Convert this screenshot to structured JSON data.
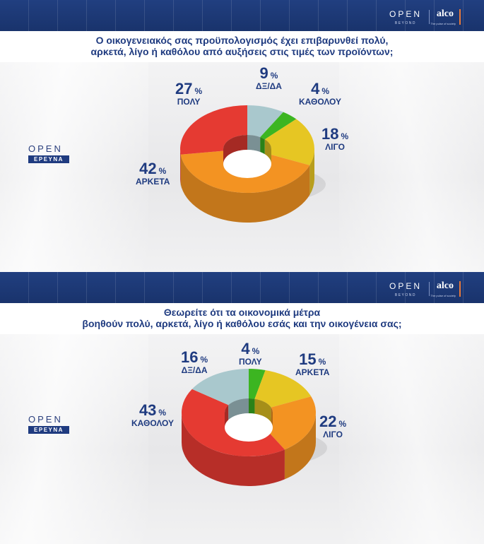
{
  "brand": {
    "open": "OPEN",
    "beyond": "BEYOND",
    "alco": "alco",
    "alco_tag": "The pulse of society"
  },
  "logo": {
    "word": "OPEN",
    "tag": "ΕΡΕΥΝΑ"
  },
  "colors": {
    "header": "#1d3a78",
    "text": "#1f3b80",
    "red": "#e53a32",
    "orange": "#f39322",
    "yellow": "#e6c623",
    "green": "#3cb521",
    "grey": "#a9c8cd"
  },
  "chart_data": [
    {
      "type": "pie",
      "title_line1": "Ο οικογενειακός σας προϋπολογισμός έχει επιβαρυνθεί πολύ,",
      "title_line2": "αρκετά, λίγο ή καθόλου από αυξήσεις στις τιμές των προϊόντων;",
      "pct_symbol": "%",
      "slices": [
        {
          "label": "ΔΞ/ΔΑ",
          "value": 9,
          "color": "#a9c8cd"
        },
        {
          "label": "ΚΑΘΟΛΟΥ",
          "value": 4,
          "color": "#3cb521"
        },
        {
          "label": "ΛΙΓΟ",
          "value": 18,
          "color": "#e6c623"
        },
        {
          "label": "ΑΡΚΕΤΑ",
          "value": 42,
          "color": "#f39322"
        },
        {
          "label": "ΠΟΛΥ",
          "value": 27,
          "color": "#e53a32"
        }
      ]
    },
    {
      "type": "pie",
      "title_line1": "Θεωρείτε ότι τα οικονομικά μέτρα",
      "title_line2": "βοηθούν πολύ, αρκετά, λίγο ή καθόλου εσάς και την οικογένεια σας;",
      "pct_symbol": "%",
      "slices": [
        {
          "label": "ΠΟΛΥ",
          "value": 4,
          "color": "#3cb521"
        },
        {
          "label": "ΑΡΚΕΤΑ",
          "value": 15,
          "color": "#e6c623"
        },
        {
          "label": "ΛΙΓΟ",
          "value": 22,
          "color": "#f39322"
        },
        {
          "label": "ΚΑΘΟΛΟΥ",
          "value": 43,
          "color": "#e53a32"
        },
        {
          "label": "ΔΞ/ΔΑ",
          "value": 16,
          "color": "#a9c8cd"
        }
      ]
    }
  ]
}
